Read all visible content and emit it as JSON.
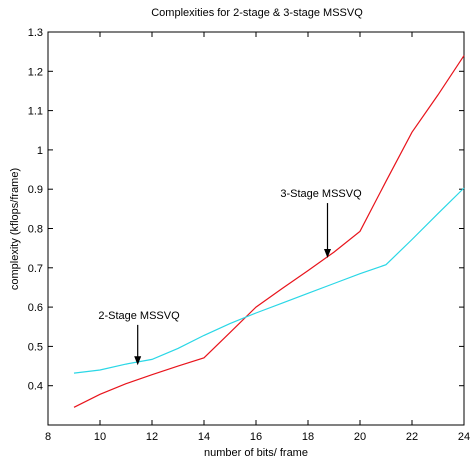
{
  "chart_data": {
    "type": "line",
    "title": "Complexities for 2-stage & 3-stage MSSVQ",
    "xlabel": "number of bits/ frame",
    "ylabel": "complexity  (kflops/frame)",
    "xlim": [
      8,
      24
    ],
    "ylim": [
      0.3,
      1.3
    ],
    "xticks": [
      8,
      10,
      12,
      14,
      16,
      18,
      20,
      22,
      24
    ],
    "yticks": [
      0.4,
      0.5,
      0.6,
      0.7,
      0.8,
      0.9,
      1,
      1.1,
      1.2,
      1.3
    ],
    "grid": false,
    "series": [
      {
        "color": "#e8141c",
        "x": [
          9,
          10,
          11,
          12,
          13,
          14,
          15,
          16,
          17,
          18,
          19,
          20,
          21,
          22,
          23,
          24
        ],
        "y": [
          0.345,
          0.378,
          0.405,
          0.428,
          0.45,
          0.471,
          0.535,
          0.6,
          0.647,
          0.693,
          0.74,
          0.793,
          0.92,
          1.045,
          1.14,
          1.24
        ]
      },
      {
        "color": "#2ad7e6",
        "x": [
          9,
          10,
          11,
          12,
          13,
          14,
          15,
          16,
          17,
          18,
          19,
          20,
          21,
          22,
          23,
          24
        ],
        "y": [
          0.432,
          0.44,
          0.455,
          0.467,
          0.495,
          0.528,
          0.558,
          0.585,
          0.61,
          0.635,
          0.66,
          0.685,
          0.708,
          0.772,
          0.838,
          0.903
        ]
      }
    ],
    "annotations": [
      {
        "text": "3-Stage MSSVQ",
        "text_x": 18.5,
        "text_y": 0.88,
        "arrow_to_x": 18.75,
        "arrow_to_y": 0.725
      },
      {
        "text": "2-Stage MSSVQ",
        "text_x": 11.5,
        "text_y": 0.57,
        "arrow_to_x": 11.45,
        "arrow_to_y": 0.452
      }
    ]
  }
}
